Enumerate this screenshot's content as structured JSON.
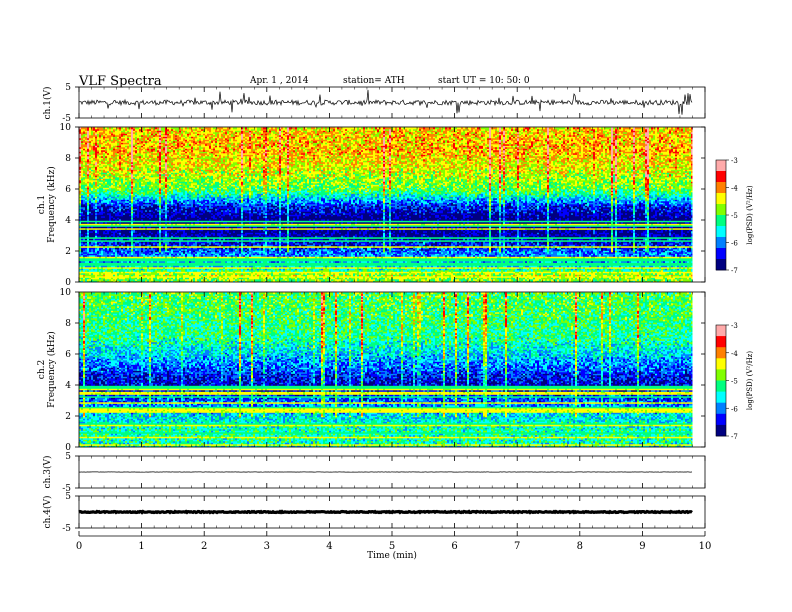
{
  "header": {
    "title": "VLF  Spectra",
    "date": "Apr. 1  , 2014",
    "station": "station= ATH",
    "start": "start  UT  =   10: 50: 0"
  },
  "chart_data": [
    {
      "type": "line",
      "name": "ch1-waveform",
      "ylabel": "ch.1(V)",
      "ylim": [
        -5,
        5
      ],
      "yticks": [
        "5",
        "-5"
      ],
      "xlim": [
        0,
        10
      ],
      "data_end_min": 9.8,
      "baseline_v": 0,
      "noise_v": 0.8,
      "spike_v": 2.3
    },
    {
      "type": "heatmap",
      "name": "ch1-spectrogram",
      "ylabel": "ch.1\nFrequency  (kHz)",
      "ylim": [
        0,
        10
      ],
      "yticks": [
        "0",
        "2",
        "4",
        "6",
        "8",
        "10"
      ],
      "xlim": [
        0,
        10
      ],
      "colorbar": {
        "label": "log(PSD) (V²/Hz)",
        "range": [
          -7,
          -3
        ],
        "ticks": [
          "-3",
          "-4",
          "-5",
          "-6",
          "-7"
        ]
      },
      "profile": [
        {
          "f": 0.0,
          "v": -5.0
        },
        {
          "f": 0.5,
          "v": -4.6
        },
        {
          "f": 1.0,
          "v": -5.6
        },
        {
          "f": 2.0,
          "v": -6.1
        },
        {
          "f": 3.0,
          "v": -6.7
        },
        {
          "f": 4.0,
          "v": -7.0
        },
        {
          "f": 5.0,
          "v": -6.3
        },
        {
          "f": 6.0,
          "v": -5.0
        },
        {
          "f": 7.0,
          "v": -4.6
        },
        {
          "f": 8.5,
          "v": -4.2
        },
        {
          "f": 10.0,
          "v": -4.3
        }
      ]
    },
    {
      "type": "heatmap",
      "name": "ch2-spectrogram",
      "ylabel": "ch.2\nFrequency  (kHz)",
      "ylim": [
        0,
        10
      ],
      "yticks": [
        "0",
        "2",
        "4",
        "6",
        "8",
        "10"
      ],
      "xlim": [
        0,
        10
      ],
      "colorbar": {
        "label": "log(PSD) (V²/Hz)",
        "range": [
          -7,
          -3
        ],
        "ticks": [
          "-3",
          "-4",
          "-5",
          "-6",
          "-7"
        ]
      },
      "profile": [
        {
          "f": 0.0,
          "v": -5.4
        },
        {
          "f": 1.0,
          "v": -5.3
        },
        {
          "f": 2.0,
          "v": -5.6
        },
        {
          "f": 3.0,
          "v": -6.1
        },
        {
          "f": 4.0,
          "v": -6.6
        },
        {
          "f": 5.0,
          "v": -6.2
        },
        {
          "f": 6.0,
          "v": -5.7
        },
        {
          "f": 7.0,
          "v": -5.3
        },
        {
          "f": 8.5,
          "v": -5.1
        },
        {
          "f": 10.0,
          "v": -5.0
        }
      ]
    },
    {
      "type": "line",
      "name": "ch3-waveform",
      "ylabel": "ch.3(V)",
      "ylim": [
        -5,
        5
      ],
      "yticks": [
        "5",
        "-5"
      ],
      "xlim": [
        0,
        10
      ],
      "data_end_min": 9.8,
      "baseline_v": 0,
      "noise_v": 0.05,
      "spike_v": 0
    },
    {
      "type": "line",
      "name": "ch4-waveform",
      "ylabel": "ch.4(V)",
      "ylim": [
        -5,
        5
      ],
      "yticks": [
        "5",
        "-5"
      ],
      "xlim": [
        0,
        10
      ],
      "data_end_min": 9.8,
      "baseline_v": 0,
      "noise_v": 0.15,
      "spike_v": 0
    }
  ],
  "xaxis": {
    "label": "Time  (min)",
    "ticks": [
      "0",
      "1",
      "2",
      "3",
      "4",
      "5",
      "6",
      "7",
      "8",
      "9",
      "10"
    ]
  },
  "colors": {
    "colormap": [
      "#000080",
      "#0000ff",
      "#0080ff",
      "#00ffff",
      "#00ff80",
      "#80ff00",
      "#ffff00",
      "#ff8000",
      "#ff0000",
      "#ffaaaa"
    ]
  }
}
